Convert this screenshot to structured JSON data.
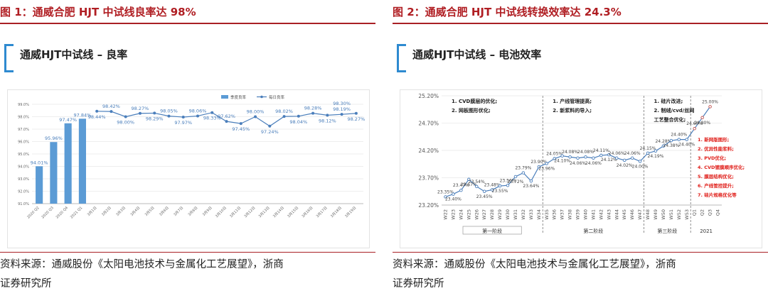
{
  "left": {
    "figure_title": "图 1：通威合肥 HJT 中试线良率达 98%",
    "slide_heading": "通威HJT中试线 – 良率",
    "source_line1": "资料来源：通威股份《太阳电池技术与金属化工艺展望》，浙商",
    "source_line2": "证券研究所"
  },
  "right": {
    "figure_title": "图 2：通威合肥 HJT 中试线转换效率达 24.3%",
    "slide_heading": "通威HJT中试线 – 电池效率",
    "source_line1": "资料来源：通威股份《太阳电池技术与金属化工艺展望》，浙商",
    "source_line2": "证券研究所"
  },
  "colors": {
    "accent_red": "#b01e23",
    "bar_blue": "#5b9bd5",
    "line_blue": "#4a7ebb",
    "bracket_blue": "#2e8ad0",
    "annotation_red": "#e0201b"
  },
  "chart_data": [
    {
      "type": "bar+line",
      "legend": [
        "季度良率",
        "每日良率"
      ],
      "legend_position": "top-right",
      "ylim": [
        91.0,
        99.0
      ],
      "yticks": [
        "91.0%",
        "92.0%",
        "93.0%",
        "94.0%",
        "95.0%",
        "96.0%",
        "97.0%",
        "98.0%",
        "99.0%"
      ],
      "bar_categories": [
        "2020 Q2",
        "2020 Q3",
        "2020 Q4",
        "2021 Q1"
      ],
      "bar_values": [
        94.01,
        95.96,
        97.47,
        97.84
      ],
      "bar_labels": [
        "94.01%",
        "95.96%",
        "97.47%",
        "97.84%"
      ],
      "line_categories": [
        "3月1日",
        "3月2日",
        "3月3日",
        "3月4日",
        "3月5日",
        "3月6日",
        "3月7日",
        "3月8日",
        "3月9日",
        "3月10日",
        "3月11日",
        "3月12日",
        "3月13日",
        "3月14日",
        "3月15日",
        "3月16日",
        "3月17日",
        "3月18日",
        "3月19日"
      ],
      "line_values": [
        98.44,
        98.42,
        98.0,
        98.27,
        98.29,
        98.05,
        97.97,
        98.06,
        98.33,
        97.62,
        97.45,
        98.0,
        97.24,
        98.02,
        98.04,
        98.28,
        98.12,
        98.19,
        98.27
      ],
      "line_labels": [
        "98.44%",
        "98.42%",
        "98.00%",
        "98.27%",
        "98.29%",
        "98.05%",
        "97.97%",
        "98.06%",
        "98.33%",
        "97.62%",
        "97.45%",
        "98.00%",
        "97.24%",
        "98.02%",
        "98.04%",
        "98.28%",
        "98.12%",
        "98.19%",
        "98.27%"
      ],
      "extra_label": "98.30%"
    },
    {
      "type": "line",
      "ylim": [
        23.2,
        25.2
      ],
      "yticks": [
        "23.20%",
        "23.70%",
        "24.20%",
        "24.70%",
        "25.20%"
      ],
      "x": [
        "W22",
        "W23",
        "W24",
        "W25",
        "W26",
        "W27",
        "W28",
        "W29",
        "W30",
        "W31",
        "W32",
        "W33",
        "W34",
        "W35",
        "W36",
        "W37",
        "W38",
        "W39",
        "W40",
        "W41",
        "W42",
        "W43",
        "W44",
        "W45",
        "W46",
        "W47",
        "W48",
        "W49",
        "W50",
        "W51",
        "W52",
        "W53",
        "Q1",
        "Q2",
        "Q3",
        "Q4"
      ],
      "values": [
        23.35,
        23.4,
        23.47,
        23.67,
        23.54,
        23.45,
        23.48,
        23.55,
        23.56,
        23.72,
        23.79,
        23.64,
        23.9,
        23.96,
        24.05,
        24.1,
        24.08,
        24.06,
        24.08,
        24.06,
        24.11,
        24.12,
        24.06,
        24.02,
        24.06,
        24.0,
        24.15,
        24.19,
        24.28,
        24.38,
        24.4,
        24.4,
        24.6,
        24.8,
        25.0,
        null
      ],
      "point_labels": [
        "23.35%",
        "23.40%",
        "23.47%",
        "23.67%",
        "23.54%",
        "23.45%",
        "23.48%",
        "23.55%",
        "23.56%",
        "23.72%",
        "23.79%",
        "23.64%",
        "23.90%",
        "23.96%",
        "24.05%",
        "24.10%",
        "24.08%",
        "24.06%",
        "24.08%",
        "24.06%",
        "24.11%",
        "24.12%",
        "24.06%",
        "24.02%",
        "24.06%",
        "24.00%",
        "24.15%",
        "24.19%",
        "24.28%",
        "24.38%",
        "24.40%",
        "24.40%",
        "24.60%",
        "24.80%",
        "25.00%",
        ""
      ],
      "phases": [
        {
          "label": "第一阶段",
          "from": 0,
          "to": 12,
          "notes": [
            "1.  CVD膜层的优化;",
            "2.  网板图形优化;"
          ]
        },
        {
          "label": "第二阶段",
          "from": 13,
          "to": 25,
          "notes": [
            "1.  产线管理提高;",
            "2.  新浆料的导入;"
          ]
        },
        {
          "label": "第三阶段",
          "from": 26,
          "to": 31,
          "notes": [
            "1.  硅片改进;",
            "2.  制绒/cvd/丝网",
            "工艺整合优化;"
          ]
        },
        {
          "label": "2021",
          "from": 32,
          "to": 35,
          "notes": []
        }
      ],
      "roadmap": [
        "1.  新网版图形;",
        "2.  优异性能浆料;",
        "3.  PVD优化;",
        "4.  CVD镀膜顺序优化;",
        "5.  膜层结构优化;",
        "6.  产线管控提升;",
        "7.  硅片规格优化等"
      ]
    }
  ]
}
